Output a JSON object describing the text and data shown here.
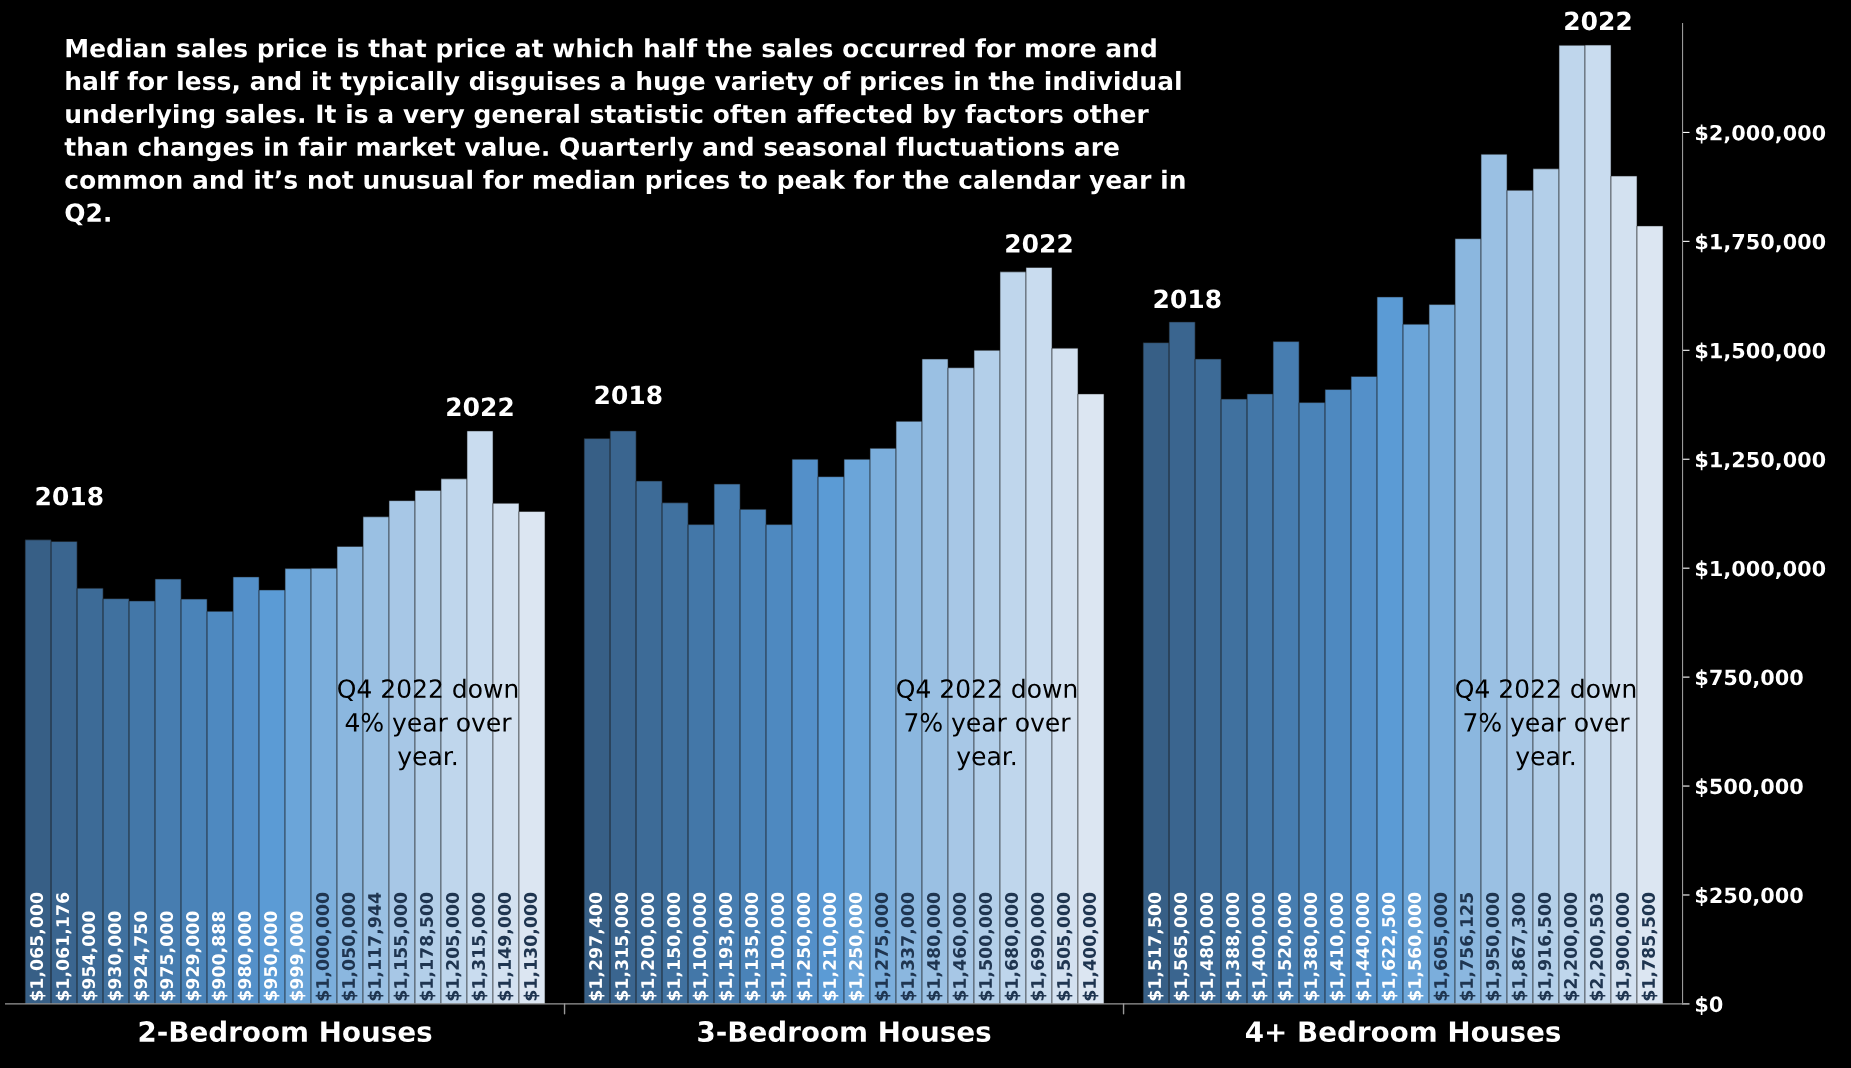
{
  "chart_data": {
    "type": "bar",
    "categories": [
      "2-Bedroom Houses",
      "3-Bedroom Houses",
      "4+ Bedroom Houses"
    ],
    "series": [
      {
        "color": "#375f86",
        "values": [
          1065000,
          1297400,
          1517500
        ],
        "value_labels": [
          "$1,065,000",
          "$1,297,400",
          "$1,517,500"
        ]
      },
      {
        "color": "#3a658f",
        "values": [
          1061176,
          1315000,
          1565000
        ],
        "value_labels": [
          "$1,061,176",
          "$1,315,000",
          "$1,565,000"
        ]
      },
      {
        "color": "#3d6b97",
        "values": [
          954000,
          1200000,
          1480000
        ],
        "value_labels": [
          "$954,000",
          "$1,200,000",
          "$1,480,000"
        ]
      },
      {
        "color": "#40719f",
        "values": [
          930000,
          1150000,
          1388000
        ],
        "value_labels": [
          "$930,000",
          "$1,150,000",
          "$1,388,000"
        ]
      },
      {
        "color": "#4377a8",
        "values": [
          924750,
          1100000,
          1400000
        ],
        "value_labels": [
          "$924,750",
          "$1,100,000",
          "$1,400,000"
        ]
      },
      {
        "color": "#477db0",
        "values": [
          975000,
          1193000,
          1520000
        ],
        "value_labels": [
          "$975,000",
          "$1,193,000",
          "$1,520,000"
        ]
      },
      {
        "color": "#4a83b8",
        "values": [
          929000,
          1135000,
          1380000
        ],
        "value_labels": [
          "$929,000",
          "$1,135,000",
          "$1,380,000"
        ]
      },
      {
        "color": "#4e89c0",
        "values": [
          900888,
          1100000,
          1410000
        ],
        "value_labels": [
          "$900,888",
          "$1,100,000",
          "$1,410,000"
        ]
      },
      {
        "color": "#5490c9",
        "values": [
          980000,
          1250000,
          1440000
        ],
        "value_labels": [
          "$980,000",
          "$1,250,000",
          "$1,440,000"
        ]
      },
      {
        "color": "#5b9bd5",
        "values": [
          950000,
          1210000,
          1622500
        ],
        "value_labels": [
          "$950,000",
          "$1,210,000",
          "$1,622,500"
        ]
      },
      {
        "color": "#6ba5d9",
        "values": [
          999000,
          1250000,
          1560000
        ],
        "value_labels": [
          "$999,000",
          "$1,250,000",
          "$1,560,000"
        ]
      },
      {
        "color": "#7baedc",
        "values": [
          1000000,
          1275000,
          1605000
        ],
        "value_labels": [
          "$1,000,000",
          "$1,275,000",
          "$1,605,000"
        ]
      },
      {
        "color": "#8bb7df",
        "values": [
          1050000,
          1337000,
          1756125
        ],
        "value_labels": [
          "$1,050,000",
          "$1,337,000",
          "$1,756,125"
        ]
      },
      {
        "color": "#9ac0e3",
        "values": [
          1117944,
          1480000,
          1950000
        ],
        "value_labels": [
          "$1,117,944",
          "$1,480,000",
          "$1,950,000"
        ]
      },
      {
        "color": "#a7c7e6",
        "values": [
          1155000,
          1460000,
          1867300
        ],
        "value_labels": [
          "$1,155,000",
          "$1,460,000",
          "$1,867,300"
        ]
      },
      {
        "color": "#b3cfe9",
        "values": [
          1178500,
          1500000,
          1916500
        ],
        "value_labels": [
          "$1,178,500",
          "$1,500,000",
          "$1,916,500"
        ]
      },
      {
        "color": "#bfd6ec",
        "values": [
          1205000,
          1680000,
          2200000
        ],
        "value_labels": [
          "$1,205,000",
          "$1,680,000",
          "$2,200,000"
        ]
      },
      {
        "color": "#c9dcef",
        "values": [
          1315000,
          1690000,
          2200503
        ],
        "value_labels": [
          "$1,315,000",
          "$1,690,000",
          "$2,200,503"
        ]
      },
      {
        "color": "#d3e1f0",
        "values": [
          1149000,
          1505000,
          1900000
        ],
        "value_labels": [
          "$1,149,000",
          "$1,505,000",
          "$1,900,000"
        ]
      },
      {
        "color": "#dce6f2",
        "values": [
          1130000,
          1400000,
          1785500
        ],
        "value_labels": [
          "$1,130,000",
          "$1,400,000",
          "$1,785,500"
        ]
      }
    ],
    "ylim": [
      0,
      2250000
    ],
    "yticks": [
      {
        "value": 0,
        "label": "$0"
      },
      {
        "value": 250000,
        "label": "$250,000"
      },
      {
        "value": 500000,
        "label": "$500,000"
      },
      {
        "value": 750000,
        "label": "$750,000"
      },
      {
        "value": 1000000,
        "label": "$1,000,000"
      },
      {
        "value": 1250000,
        "label": "$1,250,000"
      },
      {
        "value": 1500000,
        "label": "$1,500,000"
      },
      {
        "value": 1750000,
        "label": "$1,750,000"
      },
      {
        "value": 2000000,
        "label": "$2,000,000"
      }
    ],
    "grid": false,
    "legend": false,
    "annotations": [
      "Median sales price is that price at which half the sales occurred for more and half for less, and it typically disguises a huge variety of prices in the individual underlying sales. It is a very general statistic often affected by factors other than changes in fair market value. Quarterly and seasonal fluctuations are common and it’s not unusual for median prices to peak for the calendar year in Q2.",
      "2018",
      "2022",
      "Q4 2022 down 4% year over year.",
      "2018",
      "2022",
      "Q4 2022 down 7% year over year.",
      "2018",
      "2022",
      "Q4 2022 down 7% year over year."
    ]
  }
}
